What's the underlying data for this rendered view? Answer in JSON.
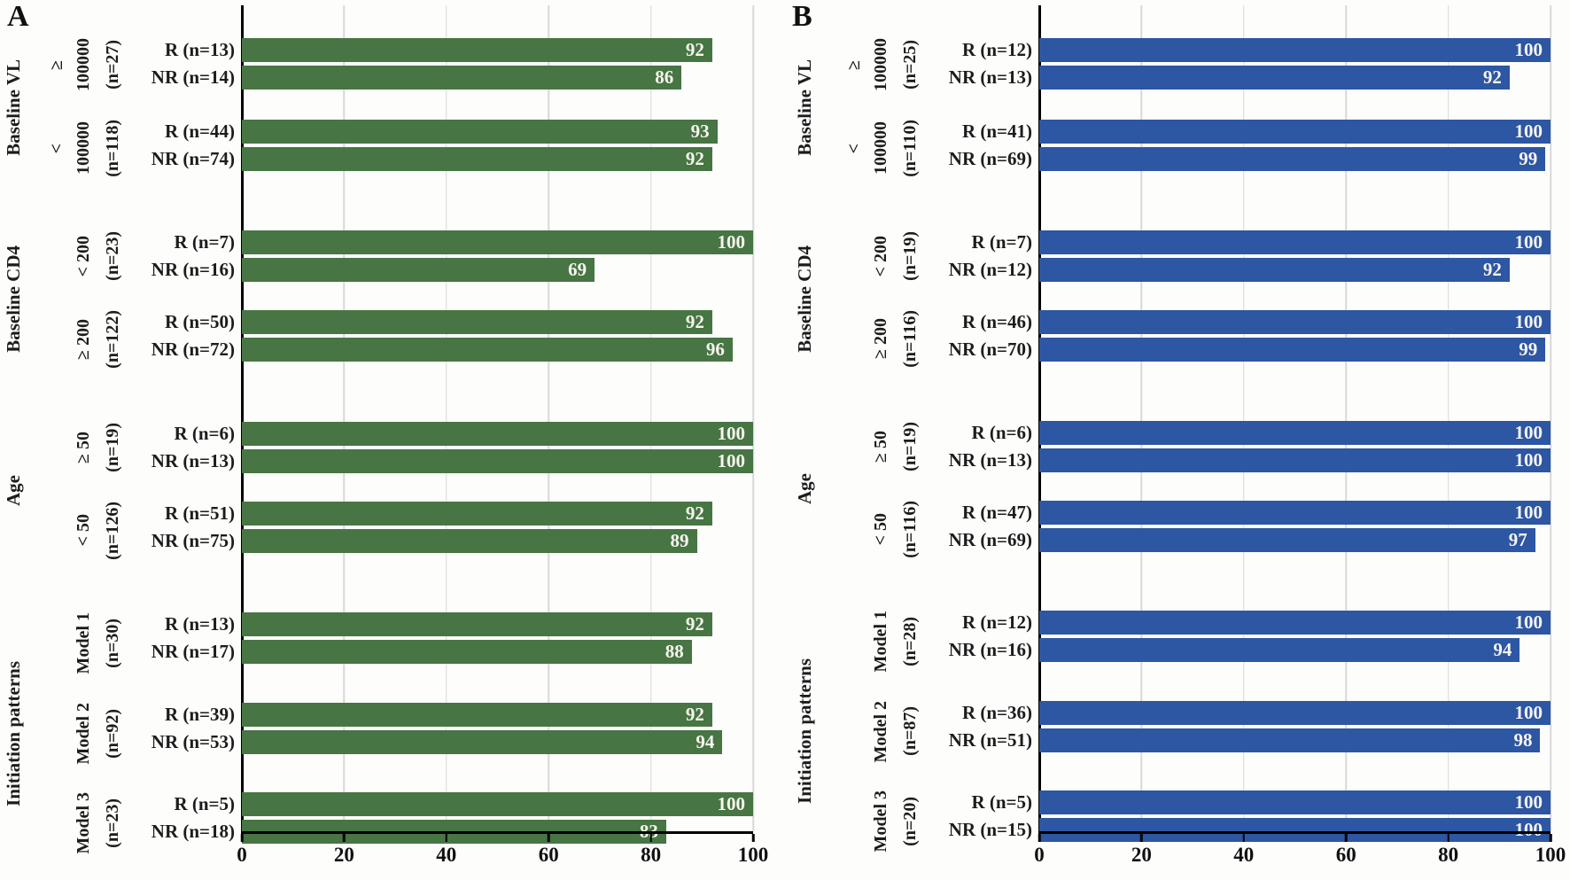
{
  "chart_data": [
    {
      "type": "bar",
      "orientation": "horizontal",
      "panel": "A",
      "color": "#477544",
      "xlim": [
        0,
        100
      ],
      "x_ticks": [
        0,
        20,
        40,
        60,
        80,
        100
      ],
      "grid": true,
      "groups": [
        {
          "label": "Baseline VL",
          "subgroups": [
            {
              "lines": [
                "≥",
                "100000"
              ],
              "n": "(n=27)",
              "rows": [
                {
                  "label": "R (n=13)",
                  "value": 92
                },
                {
                  "label": "NR (n=14)",
                  "value": 86
                }
              ]
            },
            {
              "lines": [
                "<",
                "100000"
              ],
              "n": "(n=118)",
              "rows": [
                {
                  "label": "R (n=44)",
                  "value": 93
                },
                {
                  "label": "NR (n=74)",
                  "value": 92
                }
              ]
            }
          ]
        },
        {
          "label": "Baseline CD4",
          "subgroups": [
            {
              "lines": [
                "< 200"
              ],
              "n": "(n=23)",
              "rows": [
                {
                  "label": "R (n=7)",
                  "value": 100
                },
                {
                  "label": "NR (n=16)",
                  "value": 69
                }
              ]
            },
            {
              "lines": [
                "≥ 200"
              ],
              "n": "(n=122)",
              "rows": [
                {
                  "label": "R (n=50)",
                  "value": 92
                },
                {
                  "label": "NR (n=72)",
                  "value": 96
                }
              ]
            }
          ]
        },
        {
          "label": "Age",
          "subgroups": [
            {
              "lines": [
                "≥ 50"
              ],
              "n": "(n=19)",
              "rows": [
                {
                  "label": "R (n=6)",
                  "value": 100
                },
                {
                  "label": "NR (n=13)",
                  "value": 100
                }
              ]
            },
            {
              "lines": [
                "< 50"
              ],
              "n": "(n=126)",
              "rows": [
                {
                  "label": "R (n=51)",
                  "value": 92
                },
                {
                  "label": "NR (n=75)",
                  "value": 89
                }
              ]
            }
          ]
        },
        {
          "label": "Initiation patterns",
          "subgroups": [
            {
              "lines": [
                "Model 1"
              ],
              "n": "(n=30)",
              "rows": [
                {
                  "label": "R (n=13)",
                  "value": 92
                },
                {
                  "label": "NR (n=17)",
                  "value": 88
                }
              ]
            },
            {
              "lines": [
                "Model 2"
              ],
              "n": "(n=92)",
              "rows": [
                {
                  "label": "R (n=39)",
                  "value": 92
                },
                {
                  "label": "NR (n=53)",
                  "value": 94
                }
              ]
            },
            {
              "lines": [
                "Model 3"
              ],
              "n": "(n=23)",
              "rows": [
                {
                  "label": "R (n=5)",
                  "value": 100
                },
                {
                  "label": "NR (n=18)",
                  "value": 83
                }
              ]
            }
          ]
        }
      ]
    },
    {
      "type": "bar",
      "orientation": "horizontal",
      "panel": "B",
      "color": "#2d56a3",
      "xlim": [
        0,
        100
      ],
      "x_ticks": [
        0,
        20,
        40,
        60,
        80,
        100
      ],
      "grid": true,
      "groups": [
        {
          "label": "Baseline VL",
          "subgroups": [
            {
              "lines": [
                "≥",
                "100000"
              ],
              "n": "(n=25)",
              "rows": [
                {
                  "label": "R (n=12)",
                  "value": 100
                },
                {
                  "label": "NR (n=13)",
                  "value": 92
                }
              ]
            },
            {
              "lines": [
                "<",
                "100000"
              ],
              "n": "(n=110)",
              "rows": [
                {
                  "label": "R (n=41)",
                  "value": 100
                },
                {
                  "label": "NR (n=69)",
                  "value": 99
                }
              ]
            }
          ]
        },
        {
          "label": "Baseline CD4",
          "subgroups": [
            {
              "lines": [
                "< 200"
              ],
              "n": "(n=19)",
              "rows": [
                {
                  "label": "R (n=7)",
                  "value": 100
                },
                {
                  "label": "NR (n=12)",
                  "value": 92
                }
              ]
            },
            {
              "lines": [
                "≥ 200"
              ],
              "n": "(n=116)",
              "rows": [
                {
                  "label": "R (n=46)",
                  "value": 100
                },
                {
                  "label": "NR (n=70)",
                  "value": 99
                }
              ]
            }
          ]
        },
        {
          "label": "Age",
          "subgroups": [
            {
              "lines": [
                "≥ 50"
              ],
              "n": "(n=19)",
              "rows": [
                {
                  "label": "R (n=6)",
                  "value": 100
                },
                {
                  "label": "NR (n=13)",
                  "value": 100
                }
              ]
            },
            {
              "lines": [
                "< 50"
              ],
              "n": "(n=116)",
              "rows": [
                {
                  "label": "R (n=47)",
                  "value": 100
                },
                {
                  "label": "NR (n=69)",
                  "value": 97
                }
              ]
            }
          ]
        },
        {
          "label": "Initiation patterns",
          "subgroups": [
            {
              "lines": [
                "Model 1"
              ],
              "n": "(n=28)",
              "rows": [
                {
                  "label": "R (n=12)",
                  "value": 100
                },
                {
                  "label": "NR (n=16)",
                  "value": 94
                }
              ]
            },
            {
              "lines": [
                "Model 2"
              ],
              "n": "(n=87)",
              "rows": [
                {
                  "label": "R (n=36)",
                  "value": 100
                },
                {
                  "label": "NR (n=51)",
                  "value": 98
                }
              ]
            },
            {
              "lines": [
                "Model 3"
              ],
              "n": "(n=20)",
              "rows": [
                {
                  "label": "R (n=5)",
                  "value": 100
                },
                {
                  "label": "NR (n=15)",
                  "value": 100
                }
              ]
            }
          ]
        }
      ]
    }
  ]
}
